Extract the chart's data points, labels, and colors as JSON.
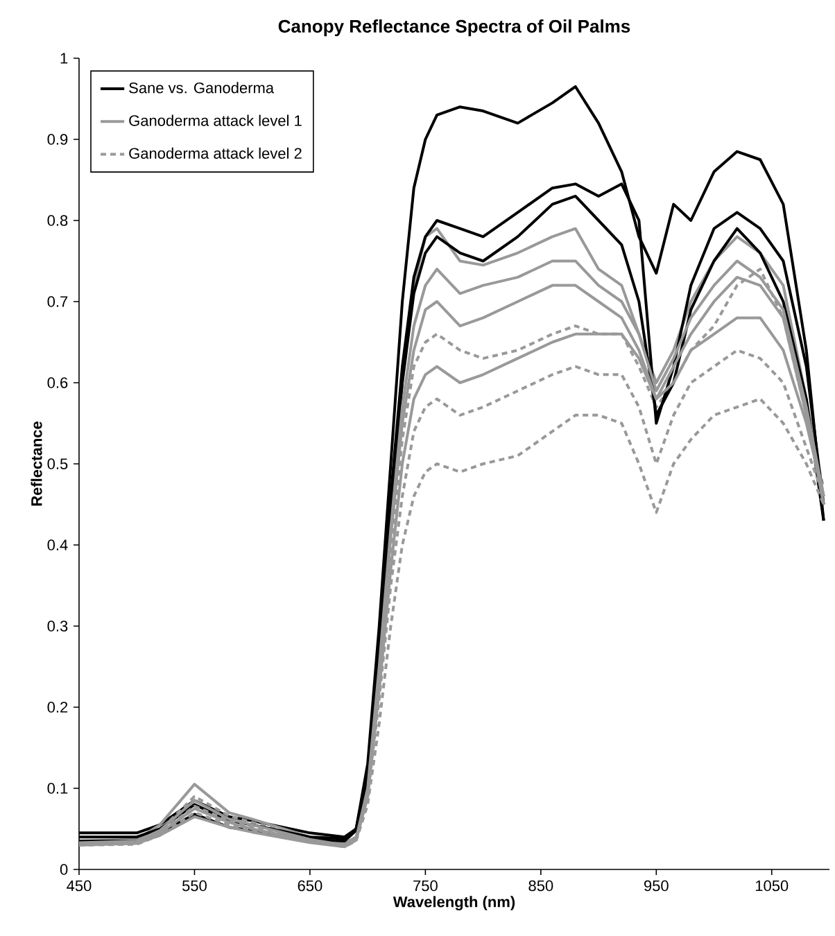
{
  "chart_data": {
    "type": "line",
    "title": "Canopy Reflectance Spectra of Oil Palms",
    "xlabel": "Wavelength (nm)",
    "ylabel": "Reflectance",
    "x": [
      450,
      500,
      520,
      550,
      580,
      600,
      650,
      680,
      690,
      700,
      710,
      720,
      730,
      740,
      750,
      760,
      780,
      800,
      830,
      860,
      880,
      900,
      920,
      935,
      950,
      965,
      980,
      1000,
      1020,
      1040,
      1060,
      1080,
      1095
    ],
    "xlim": [
      450,
      1100
    ],
    "xticks": [
      450,
      550,
      650,
      750,
      850,
      950,
      1050
    ],
    "ylim": [
      0,
      1
    ],
    "yticks": [
      0,
      0.1,
      0.2,
      0.3,
      0.4,
      0.5,
      0.6,
      0.7,
      0.8,
      0.9,
      1
    ],
    "legend": "top left",
    "grid": false,
    "marker": "none",
    "series": [
      {
        "name": "Sane vs. Ganoderma",
        "color": "#000000",
        "line_style": "solid",
        "values": [
          0.045,
          0.045,
          0.055,
          0.085,
          0.065,
          0.06,
          0.045,
          0.04,
          0.05,
          0.13,
          0.3,
          0.5,
          0.7,
          0.84,
          0.9,
          0.93,
          0.94,
          0.935,
          0.92,
          0.945,
          0.965,
          0.92,
          0.86,
          0.78,
          0.735,
          0.82,
          0.8,
          0.86,
          0.885,
          0.875,
          0.82,
          0.64,
          0.43
        ]
      },
      {
        "name": "Ganoderma attack level 1",
        "color": "#999999",
        "line_style": "solid",
        "values": [
          0.035,
          0.037,
          0.055,
          0.105,
          0.07,
          0.062,
          0.04,
          0.032,
          0.04,
          0.1,
          0.26,
          0.44,
          0.6,
          0.72,
          0.78,
          0.79,
          0.75,
          0.745,
          0.76,
          0.78,
          0.79,
          0.74,
          0.72,
          0.66,
          0.6,
          0.64,
          0.7,
          0.75,
          0.78,
          0.76,
          0.72,
          0.58,
          0.46
        ]
      },
      {
        "name": "Ganoderma attack level 2",
        "color": "#999999",
        "line_style": "dashed",
        "values": [
          0.033,
          0.035,
          0.048,
          0.09,
          0.066,
          0.058,
          0.038,
          0.03,
          0.038,
          0.09,
          0.23,
          0.39,
          0.53,
          0.62,
          0.65,
          0.66,
          0.64,
          0.63,
          0.64,
          0.66,
          0.67,
          0.66,
          0.66,
          0.62,
          0.57,
          0.6,
          0.64,
          0.67,
          0.72,
          0.74,
          0.68,
          0.56,
          0.47
        ]
      },
      {
        "color": "#000000",
        "line_style": "solid",
        "values": [
          0.04,
          0.04,
          0.05,
          0.08,
          0.06,
          0.055,
          0.04,
          0.038,
          0.05,
          0.12,
          0.28,
          0.46,
          0.62,
          0.73,
          0.78,
          0.8,
          0.79,
          0.78,
          0.81,
          0.84,
          0.845,
          0.83,
          0.845,
          0.8,
          0.55,
          0.62,
          0.72,
          0.79,
          0.81,
          0.79,
          0.75,
          0.62,
          0.45
        ]
      },
      {
        "color": "#000000",
        "line_style": "solid",
        "values": [
          0.035,
          0.035,
          0.045,
          0.068,
          0.052,
          0.048,
          0.037,
          0.035,
          0.048,
          0.11,
          0.27,
          0.45,
          0.6,
          0.71,
          0.76,
          0.78,
          0.76,
          0.75,
          0.78,
          0.82,
          0.83,
          0.8,
          0.77,
          0.7,
          0.56,
          0.6,
          0.69,
          0.75,
          0.79,
          0.76,
          0.7,
          0.58,
          0.43
        ]
      },
      {
        "color": "#999999",
        "line_style": "solid",
        "values": [
          0.033,
          0.035,
          0.048,
          0.085,
          0.062,
          0.055,
          0.037,
          0.03,
          0.038,
          0.1,
          0.25,
          0.42,
          0.57,
          0.67,
          0.72,
          0.74,
          0.71,
          0.72,
          0.73,
          0.75,
          0.75,
          0.72,
          0.7,
          0.66,
          0.59,
          0.63,
          0.68,
          0.72,
          0.75,
          0.73,
          0.69,
          0.57,
          0.46
        ]
      },
      {
        "color": "#999999",
        "line_style": "solid",
        "values": [
          0.032,
          0.033,
          0.045,
          0.075,
          0.058,
          0.05,
          0.035,
          0.03,
          0.037,
          0.09,
          0.24,
          0.41,
          0.55,
          0.64,
          0.69,
          0.7,
          0.67,
          0.68,
          0.7,
          0.72,
          0.72,
          0.7,
          0.68,
          0.64,
          0.58,
          0.62,
          0.66,
          0.7,
          0.73,
          0.72,
          0.68,
          0.56,
          0.45
        ]
      },
      {
        "color": "#999999",
        "line_style": "solid",
        "values": [
          0.03,
          0.032,
          0.042,
          0.065,
          0.052,
          0.046,
          0.033,
          0.028,
          0.036,
          0.09,
          0.22,
          0.37,
          0.5,
          0.58,
          0.61,
          0.62,
          0.6,
          0.61,
          0.63,
          0.65,
          0.66,
          0.66,
          0.66,
          0.63,
          0.58,
          0.6,
          0.64,
          0.66,
          0.68,
          0.68,
          0.64,
          0.55,
          0.46
        ]
      },
      {
        "color": "#999999",
        "line_style": "dashed",
        "values": [
          0.031,
          0.033,
          0.045,
          0.078,
          0.06,
          0.052,
          0.036,
          0.029,
          0.037,
          0.09,
          0.21,
          0.35,
          0.46,
          0.54,
          0.57,
          0.58,
          0.56,
          0.57,
          0.59,
          0.61,
          0.62,
          0.61,
          0.61,
          0.57,
          0.5,
          0.56,
          0.6,
          0.62,
          0.64,
          0.63,
          0.6,
          0.52,
          0.46
        ]
      },
      {
        "color": "#999999",
        "line_style": "dashed",
        "values": [
          0.03,
          0.031,
          0.042,
          0.07,
          0.055,
          0.048,
          0.034,
          0.028,
          0.035,
          0.08,
          0.18,
          0.3,
          0.4,
          0.46,
          0.49,
          0.5,
          0.49,
          0.5,
          0.51,
          0.54,
          0.56,
          0.56,
          0.55,
          0.5,
          0.44,
          0.5,
          0.53,
          0.56,
          0.57,
          0.58,
          0.55,
          0.5,
          0.45
        ]
      }
    ]
  }
}
